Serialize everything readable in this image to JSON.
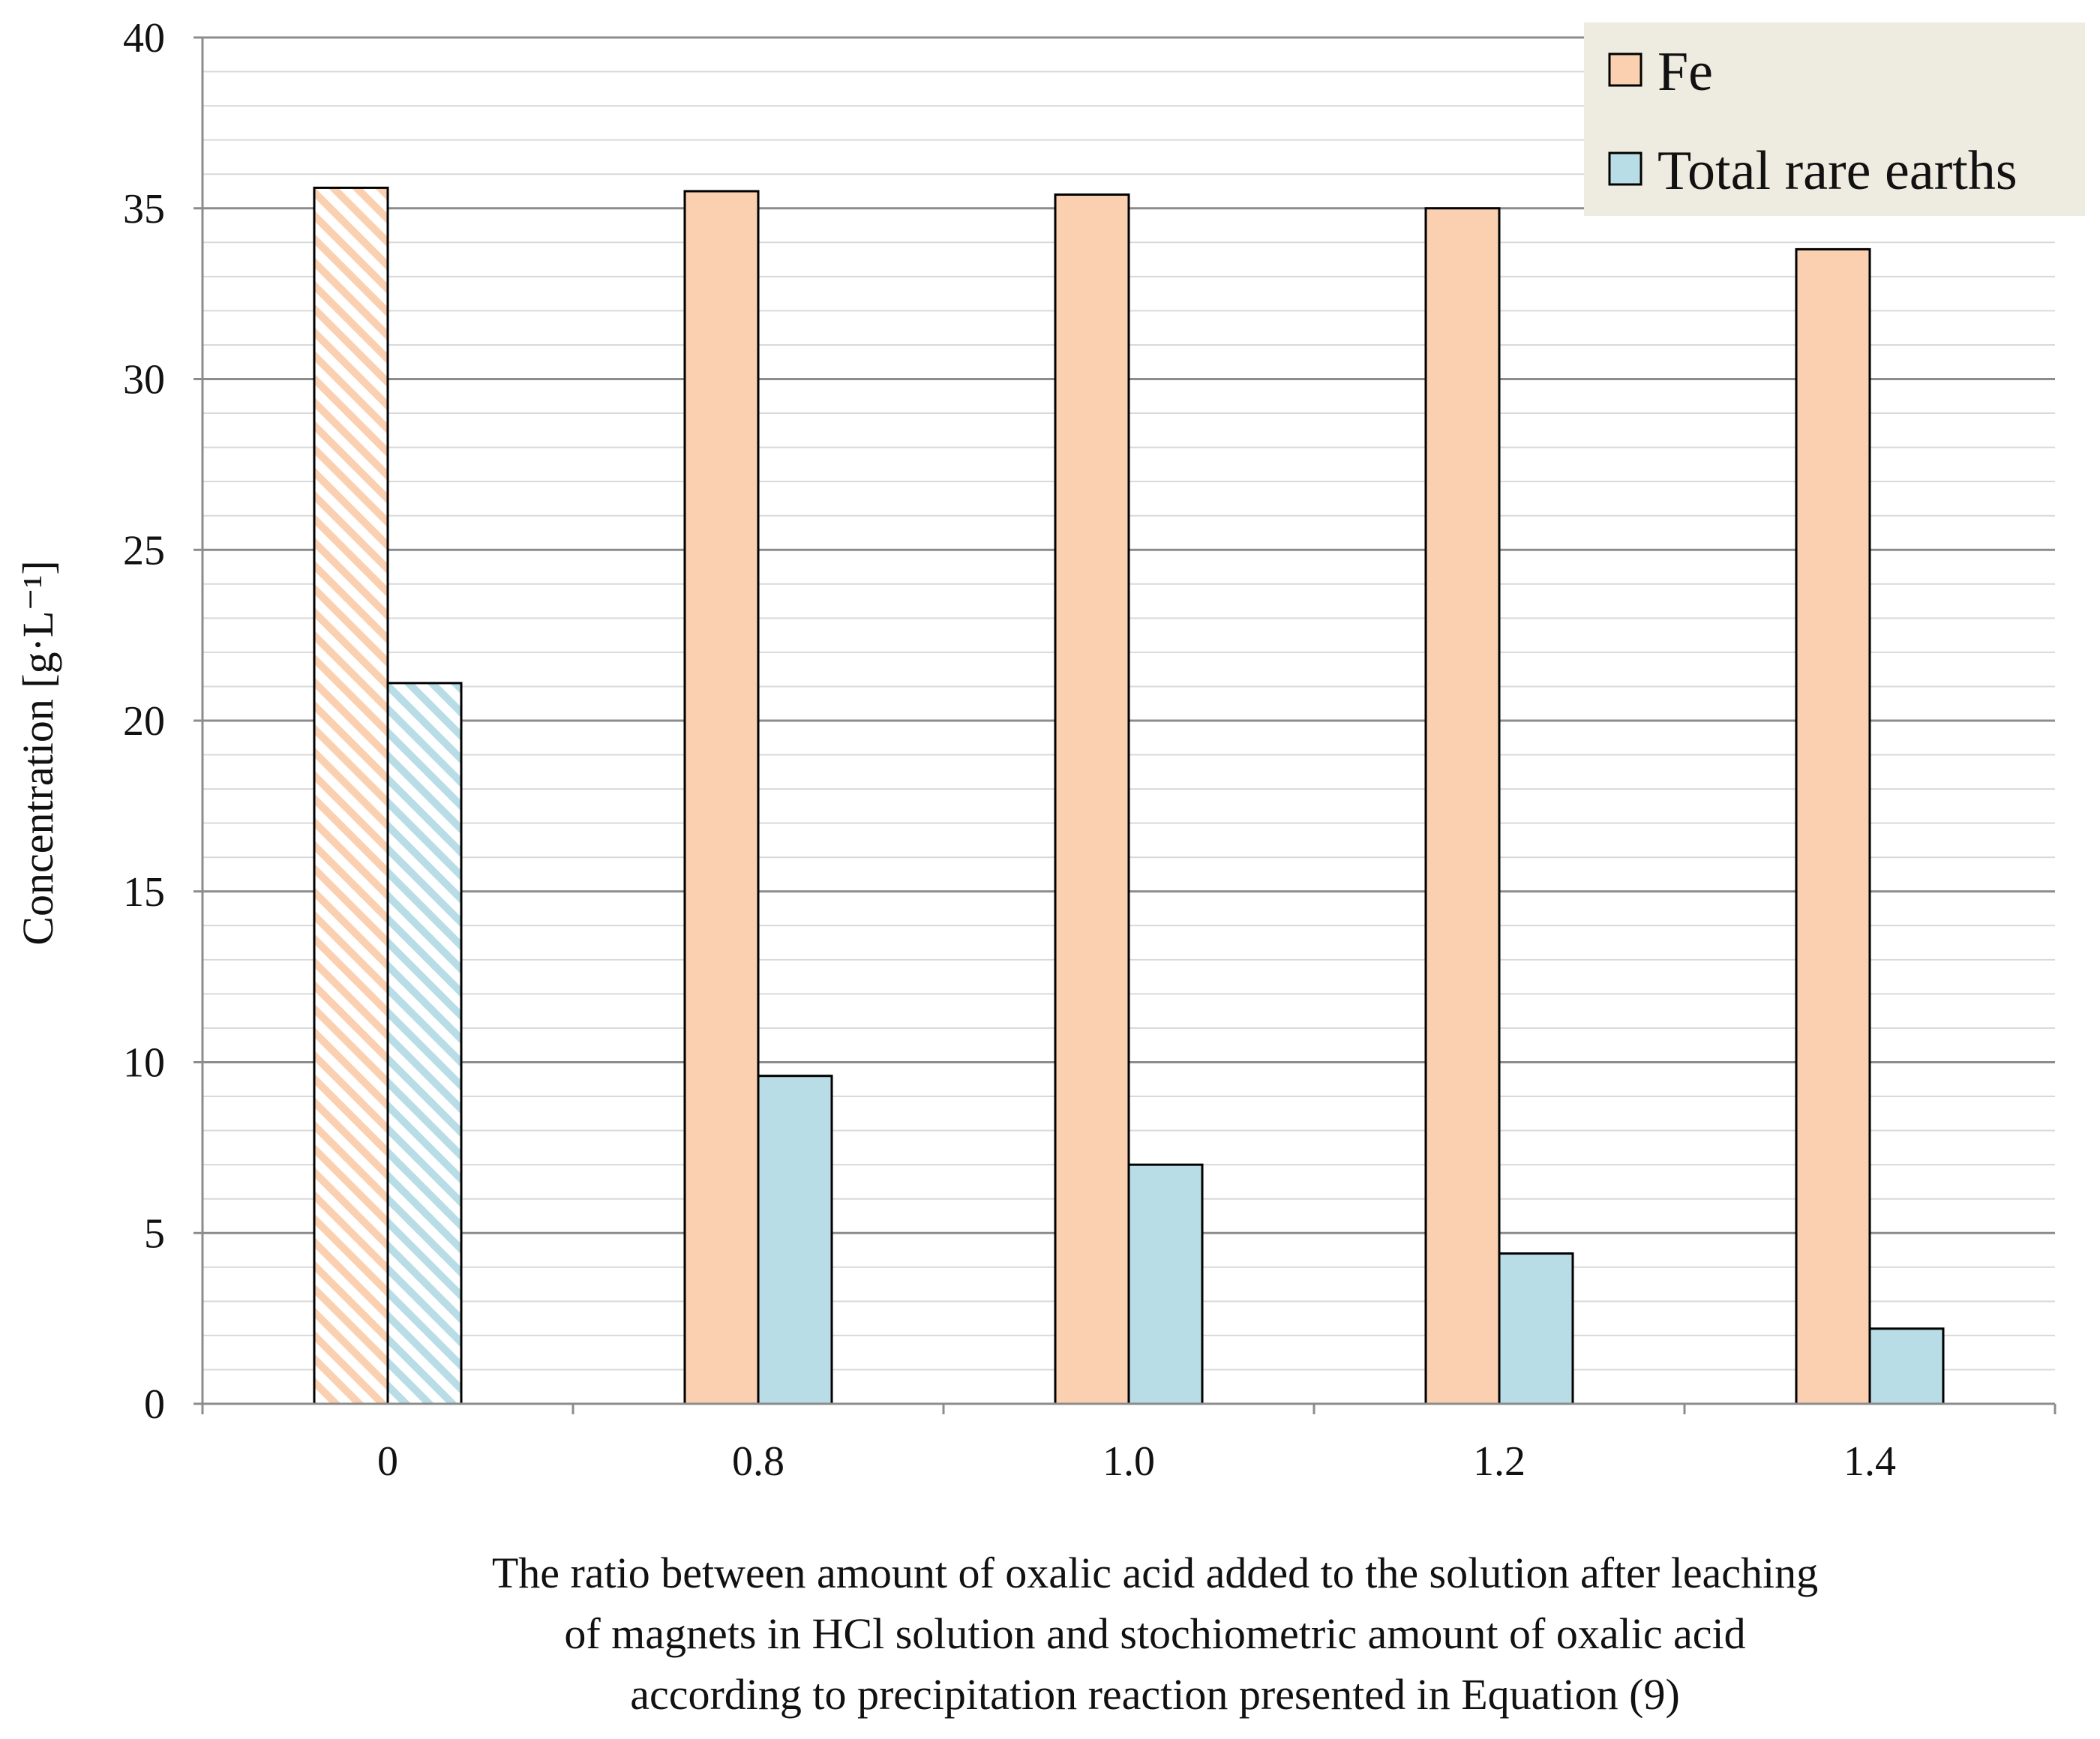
{
  "chart_data": {
    "type": "bar",
    "categories": [
      "0",
      "0.8",
      "1.0",
      "1.2",
      "1.4"
    ],
    "series": [
      {
        "name": "Fe",
        "values": [
          35.6,
          35.5,
          35.4,
          35.0,
          33.8
        ],
        "color": "#FAD0B1"
      },
      {
        "name": "Total rare earths",
        "values": [
          21.1,
          9.6,
          7.0,
          4.4,
          2.2
        ],
        "color": "#B8DDE6"
      }
    ],
    "hatched_category": "0",
    "ylabel": "Concentration [g·L⁻¹]",
    "xlabel_lines": [
      "The ratio between amount of oxalic acid added to the solution after leaching",
      "of magnets in HCl solution and stochiometric amount of oxalic acid",
      "according to precipitation reaction presented in Equation (9)"
    ],
    "ylim": [
      0,
      40
    ],
    "yticks": [
      0,
      5,
      10,
      15,
      20,
      25,
      30,
      35,
      40
    ],
    "minor_gridlines": true,
    "legend_position": "top-right",
    "legend_background": "#EEECE1"
  }
}
